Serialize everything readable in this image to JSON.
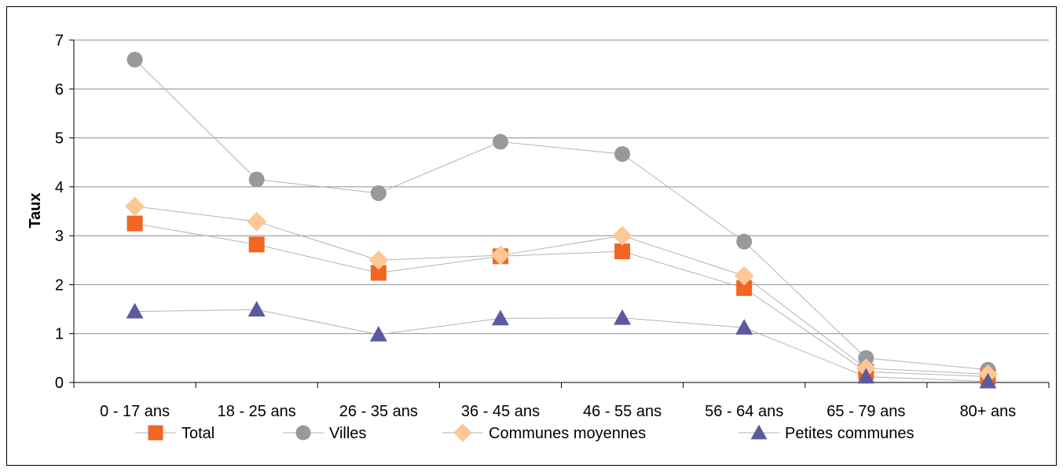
{
  "chart_data": {
    "type": "line",
    "title": "",
    "xlabel": "",
    "ylabel": "Taux",
    "ylim": [
      0,
      7
    ],
    "yticks": [
      "0",
      "1",
      "2",
      "3",
      "4",
      "5",
      "6",
      "7"
    ],
    "categories": [
      "0 - 17 ans",
      "18 - 25 ans",
      "26 - 35 ans",
      "36 - 45 ans",
      "46 - 55 ans",
      "56 - 64 ans",
      "65 - 79 ans",
      "80+ ans"
    ],
    "grid": "horizontal",
    "legend_position": "bottom",
    "series": [
      {
        "name": "Total",
        "marker": "square",
        "color": "#f26522",
        "values": [
          3.25,
          2.82,
          2.24,
          2.58,
          2.68,
          1.93,
          0.22,
          0.12
        ]
      },
      {
        "name": "Villes",
        "marker": "circle",
        "color": "#999999",
        "values": [
          6.6,
          4.15,
          3.87,
          4.92,
          4.67,
          2.88,
          0.5,
          0.26
        ]
      },
      {
        "name": "Communes moyennes",
        "marker": "diamond",
        "color": "#fdc796",
        "values": [
          3.6,
          3.29,
          2.5,
          2.6,
          3.0,
          2.18,
          0.29,
          0.17
        ]
      },
      {
        "name": "Petites communes",
        "marker": "triangle",
        "color": "#5b5b9d",
        "values": [
          1.45,
          1.49,
          0.98,
          1.31,
          1.32,
          1.12,
          0.12,
          0.02
        ]
      }
    ]
  }
}
